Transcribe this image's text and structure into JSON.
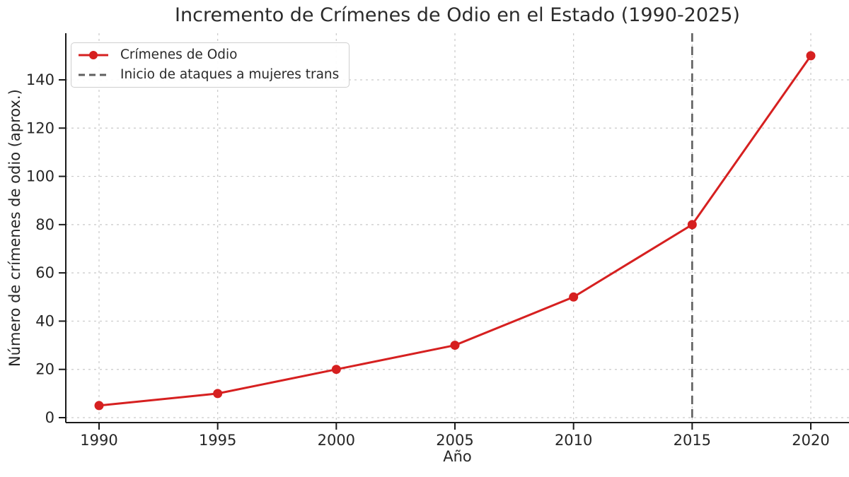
{
  "chart_data": {
    "type": "line",
    "title": "Incremento de Crímenes de Odio en el Estado (1990-2025)",
    "xlabel": "Año",
    "ylabel": "Número de crímenes de odio (aprox.)",
    "x": [
      1990,
      1995,
      2000,
      2005,
      2010,
      2015,
      2020
    ],
    "series": [
      {
        "name": "Crímenes de Odio",
        "values": [
          5,
          10,
          20,
          30,
          50,
          80,
          150
        ]
      }
    ],
    "annotation_line": {
      "x": 2015,
      "label": "Inicio de ataques a mujeres trans",
      "style": "dashed"
    },
    "legend": [
      "Crímenes de Odio",
      "Inicio de ataques a mujeres trans"
    ],
    "legend_position": "upper left",
    "xticks": [
      1990,
      1995,
      2000,
      2005,
      2010,
      2015,
      2020
    ],
    "yticks": [
      0,
      20,
      40,
      60,
      80,
      100,
      120,
      140
    ],
    "x_range": [
      1990,
      2020
    ],
    "ylim": [
      0,
      160
    ],
    "grid": true,
    "colors": {
      "series": "#d62020",
      "annotation": "#5f5f5f",
      "grid": "#c9c9c9",
      "axis": "#1a1a1a",
      "text": "#262626"
    }
  }
}
